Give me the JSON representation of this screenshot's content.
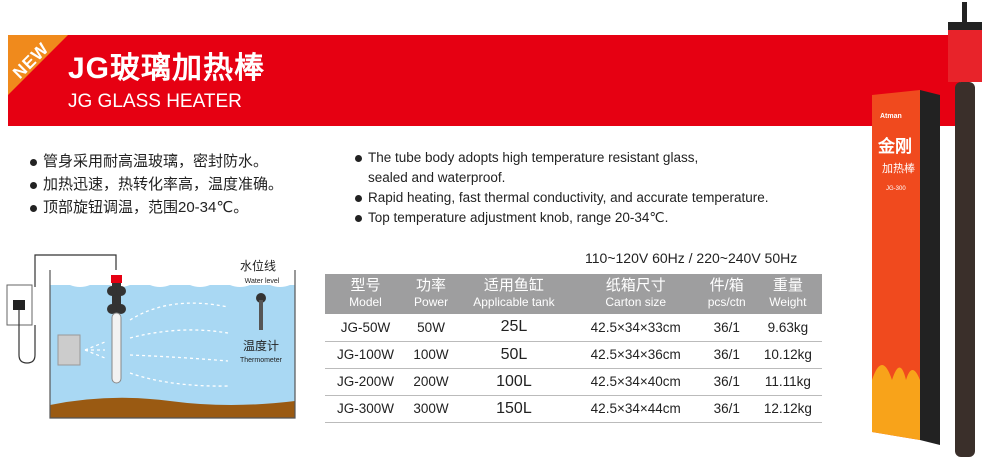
{
  "header": {
    "badge": "NEW",
    "title_cn": "JG玻璃加热棒",
    "title_en": "JG GLASS HEATER",
    "colors": {
      "banner": "#e60012",
      "badge": "#f08a1c"
    }
  },
  "features_cn": [
    "管身采用耐高温玻璃，密封防水。",
    "加热迅速，热转化率高，温度准确。",
    "顶部旋钮调温，范围20-34℃。"
  ],
  "features_en": [
    {
      "line1": "The tube body adopts high temperature resistant glass,",
      "line2": "sealed and waterproof."
    },
    {
      "line1": "Rapid heating, fast thermal conductivity, and accurate temperature."
    },
    {
      "line1": "Top temperature adjustment knob, range 20-34℃."
    }
  ],
  "diagram": {
    "water_level_cn": "水位线",
    "water_level_en": "Water level",
    "thermometer_cn": "温度计",
    "thermometer_en": "Thermometer"
  },
  "specs": {
    "voltage": "110~120V 60Hz / 220~240V 50Hz",
    "headers": [
      {
        "cn": "型号",
        "en": "Model"
      },
      {
        "cn": "功率",
        "en": "Power"
      },
      {
        "cn": "适用鱼缸",
        "en": "Applicable tank"
      },
      {
        "cn": "纸箱尺寸",
        "en": "Carton size"
      },
      {
        "cn": "件/箱",
        "en": "pcs/ctn"
      },
      {
        "cn": "重量",
        "en": "Weight"
      }
    ],
    "rows": [
      [
        "JG-50W",
        "50W",
        "25L",
        "42.5×34×33cm",
        "36/1",
        "9.63kg"
      ],
      [
        "JG-100W",
        "100W",
        "50L",
        "42.5×34×36cm",
        "36/1",
        "10.12kg"
      ],
      [
        "JG-200W",
        "200W",
        "100L",
        "42.5×34×40cm",
        "36/1",
        "11.11kg"
      ],
      [
        "JG-300W",
        "300W",
        "150L",
        "42.5×34×44cm",
        "36/1",
        "12.12kg"
      ]
    ]
  },
  "product": {
    "box_brand": "Atman",
    "box_title": "金刚",
    "box_subtitle": "加热棒",
    "box_model": "JG-300"
  }
}
